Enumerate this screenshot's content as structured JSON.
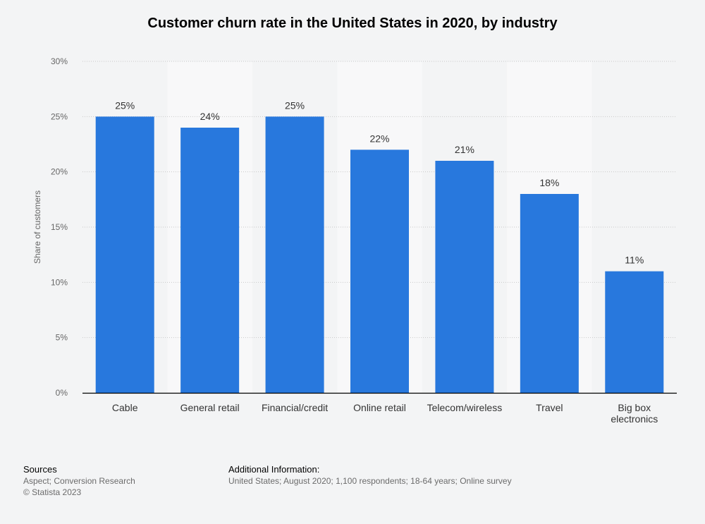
{
  "chart_data": {
    "type": "bar",
    "title": "Customer churn rate in the United States in 2020, by industry",
    "xlabel": "",
    "ylabel": "Share of customers",
    "categories": [
      "Cable",
      "General retail",
      "Financial/credit",
      "Online retail",
      "Telecom/wireless",
      "Travel",
      "Big box electronics"
    ],
    "values": [
      25,
      24,
      25,
      22,
      21,
      18,
      11
    ],
    "value_labels": [
      "25%",
      "24%",
      "25%",
      "22%",
      "21%",
      "18%",
      "11%"
    ],
    "ylim": [
      0,
      30
    ],
    "yticks": [
      "0%",
      "5%",
      "10%",
      "15%",
      "20%",
      "25%",
      "30%"
    ],
    "grid": true,
    "bar_color": "#2878dd"
  },
  "footer": {
    "sources_heading": "Sources",
    "sources_line1": "Aspect; Conversion Research",
    "sources_line2": "© Statista 2023",
    "info_heading": "Additional Information:",
    "info_text": "United States; August 2020; 1,100 respondents; 18-64 years; Online survey"
  }
}
